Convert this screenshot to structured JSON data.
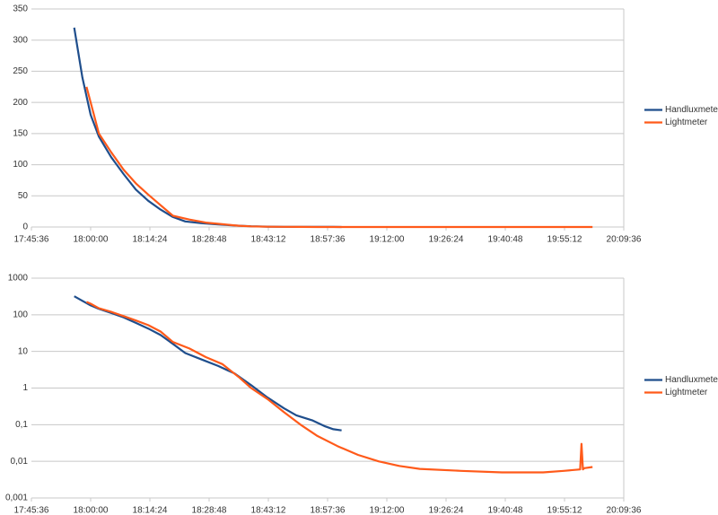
{
  "chart_data": [
    {
      "type": "line",
      "log_scale": false,
      "xlim": [
        "17:45:36",
        "20:09:36"
      ],
      "xticks": [
        "17:45:36",
        "18:00:00",
        "18:14:24",
        "18:28:48",
        "18:43:12",
        "18:57:36",
        "19:12:00",
        "19:26:24",
        "19:40:48",
        "19:55:12",
        "20:09:36"
      ],
      "ylim": [
        0,
        350
      ],
      "yticks": [
        0,
        50,
        100,
        150,
        200,
        250,
        300,
        350
      ],
      "grid": true,
      "legend": "right",
      "series": [
        {
          "name": "Handluxmeter",
          "color": "#1f4e8c",
          "x": [
            "17:56:00",
            "17:58:00",
            "18:00:00",
            "18:02:00",
            "18:05:00",
            "18:08:00",
            "18:11:00",
            "18:14:00",
            "18:17:00",
            "18:20:00",
            "18:23:00",
            "18:27:00",
            "18:31:00",
            "18:35:00",
            "18:39:00",
            "18:43:00",
            "18:47:00",
            "18:50:00",
            "18:54:00",
            "18:57:00",
            "18:59:00",
            "19:01:00"
          ],
          "values": [
            320,
            240,
            180,
            145,
            112,
            85,
            60,
            42,
            28,
            16,
            9,
            6,
            4,
            2.5,
            1.2,
            0.55,
            0.28,
            0.18,
            0.13,
            0.09,
            0.075,
            0.07
          ]
        },
        {
          "name": "Lightmeter",
          "color": "#ff5a1a",
          "x": [
            "17:59:00",
            "18:00:00",
            "18:02:00",
            "18:05:00",
            "18:08:00",
            "18:11:00",
            "18:14:00",
            "18:17:00",
            "18:20:00",
            "18:24:00",
            "18:28:00",
            "18:32:00",
            "18:36:00",
            "18:39:00",
            "18:43:00",
            "18:47:00",
            "18:51:00",
            "18:55:00",
            "19:00:00",
            "19:05:00",
            "19:10:00",
            "19:15:00",
            "19:20:00",
            "19:30:00",
            "19:40:00",
            "19:50:00",
            "19:55:00",
            "19:59:00",
            "19:59:20",
            "19:59:40",
            "20:00:00",
            "20:02:00"
          ],
          "values": [
            225,
            200,
            150,
            120,
            92,
            70,
            52,
            35,
            18,
            12,
            7,
            4.5,
            2,
            1,
            0.5,
            0.22,
            0.1,
            0.05,
            0.026,
            0.015,
            0.01,
            0.0075,
            0.0062,
            0.0055,
            0.005,
            0.005,
            0.0055,
            0.006,
            0.03,
            0.006,
            0.0065,
            0.007
          ]
        }
      ]
    },
    {
      "type": "line",
      "log_scale": true,
      "xlim": [
        "17:45:36",
        "20:09:36"
      ],
      "xticks": [
        "17:45:36",
        "18:00:00",
        "18:14:24",
        "18:28:48",
        "18:43:12",
        "18:57:36",
        "19:12:00",
        "19:26:24",
        "19:40:48",
        "19:55:12",
        "20:09:36"
      ],
      "ylim": [
        0.001,
        1000
      ],
      "yticks": [
        {
          "value": 0.001,
          "label": "0,001"
        },
        {
          "value": 0.01,
          "label": "0,01"
        },
        {
          "value": 0.1,
          "label": "0,1"
        },
        1,
        10,
        100,
        1000
      ],
      "grid": true,
      "legend": "right",
      "series": [
        {
          "name": "Handluxmeter",
          "color": "#1f4e8c",
          "x": [
            "17:56:00",
            "17:58:00",
            "18:00:00",
            "18:02:00",
            "18:05:00",
            "18:08:00",
            "18:11:00",
            "18:14:00",
            "18:17:00",
            "18:20:00",
            "18:23:00",
            "18:27:00",
            "18:31:00",
            "18:35:00",
            "18:39:00",
            "18:43:00",
            "18:47:00",
            "18:50:00",
            "18:54:00",
            "18:57:00",
            "18:59:00",
            "19:01:00"
          ],
          "values": [
            320,
            240,
            180,
            145,
            112,
            85,
            60,
            42,
            28,
            16,
            9,
            6,
            4,
            2.5,
            1.2,
            0.55,
            0.28,
            0.18,
            0.13,
            0.09,
            0.075,
            0.07
          ]
        },
        {
          "name": "Lightmeter",
          "color": "#ff5a1a",
          "x": [
            "17:59:00",
            "18:00:00",
            "18:02:00",
            "18:05:00",
            "18:08:00",
            "18:11:00",
            "18:14:00",
            "18:17:00",
            "18:20:00",
            "18:24:00",
            "18:28:00",
            "18:32:00",
            "18:36:00",
            "18:39:00",
            "18:43:00",
            "18:47:00",
            "18:51:00",
            "18:55:00",
            "19:00:00",
            "19:05:00",
            "19:10:00",
            "19:15:00",
            "19:20:00",
            "19:30:00",
            "19:40:00",
            "19:50:00",
            "19:55:00",
            "19:59:00",
            "19:59:20",
            "19:59:40",
            "20:00:00",
            "20:02:00"
          ],
          "values": [
            225,
            200,
            150,
            120,
            92,
            70,
            52,
            35,
            18,
            12,
            7,
            4.5,
            2,
            1,
            0.5,
            0.22,
            0.1,
            0.05,
            0.026,
            0.015,
            0.01,
            0.0075,
            0.0062,
            0.0055,
            0.005,
            0.005,
            0.0055,
            0.006,
            0.03,
            0.006,
            0.0065,
            0.007
          ]
        }
      ]
    }
  ]
}
